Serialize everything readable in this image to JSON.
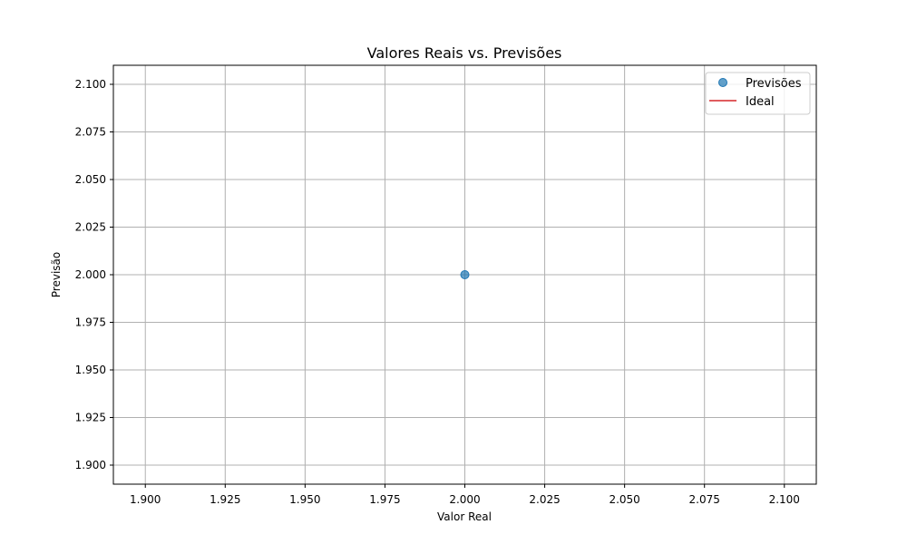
{
  "chart_data": {
    "type": "scatter",
    "title": "Valores Reais vs. Previsões",
    "xlabel": "Valor Real",
    "ylabel": "Previsão",
    "xlim": [
      1.89,
      2.11
    ],
    "ylim": [
      1.89,
      2.11
    ],
    "xticks": [
      1.9,
      1.925,
      1.95,
      1.975,
      2.0,
      2.025,
      2.05,
      2.075,
      2.1
    ],
    "yticks": [
      1.9,
      1.925,
      1.95,
      1.975,
      2.0,
      2.025,
      2.05,
      2.075,
      2.1
    ],
    "xtick_labels": [
      "1.900",
      "1.925",
      "1.950",
      "1.975",
      "2.000",
      "2.025",
      "2.050",
      "2.075",
      "2.100"
    ],
    "ytick_labels": [
      "1.900",
      "1.925",
      "1.950",
      "1.975",
      "2.000",
      "2.025",
      "2.050",
      "2.075",
      "2.100"
    ],
    "grid": true,
    "legend_position": "top-right",
    "series": [
      {
        "name": "Previsões",
        "kind": "scatter",
        "color": "#1f77b4",
        "points": [
          {
            "x": 2.0,
            "y": 2.0
          }
        ]
      },
      {
        "name": "Ideal",
        "kind": "line",
        "color": "#d62728",
        "points": [
          {
            "x": 2.0,
            "y": 2.0
          },
          {
            "x": 2.0,
            "y": 2.0
          }
        ]
      }
    ]
  }
}
